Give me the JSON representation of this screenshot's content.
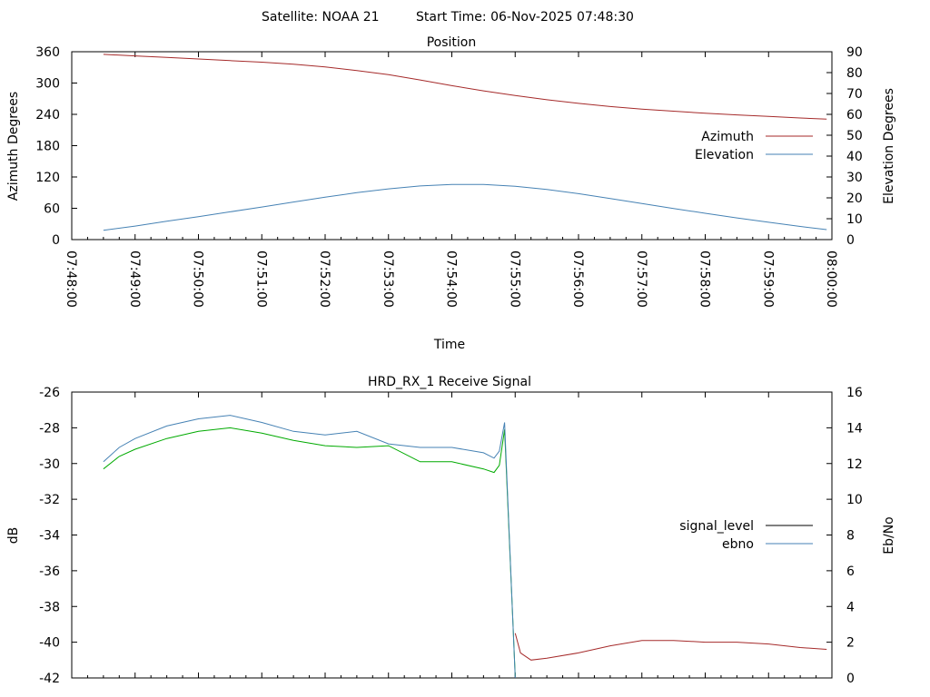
{
  "header": {
    "satellite_label": "Satellite: NOAA 21",
    "start_time_label": "Start Time: 06-Nov-2025 07:48:30"
  },
  "chart_data": [
    {
      "type": "line",
      "title": "Position",
      "xlabel": "Time",
      "ylabel_left": "Azimuth Degrees",
      "ylabel_right": "Elevation Degrees",
      "x_ticks": [
        "07:48:00",
        "07:49:00",
        "07:50:00",
        "07:51:00",
        "07:52:00",
        "07:53:00",
        "07:54:00",
        "07:55:00",
        "07:56:00",
        "07:57:00",
        "07:58:00",
        "07:59:00",
        "08:00:00"
      ],
      "ylim_left": [
        0,
        360
      ],
      "yticks_left": [
        "0",
        "60",
        "120",
        "180",
        "240",
        "300",
        "360"
      ],
      "ylim_right": [
        0,
        90
      ],
      "yticks_right": [
        "0",
        "10",
        "20",
        "30",
        "40",
        "50",
        "60",
        "70",
        "80",
        "90"
      ],
      "legend_position": "right",
      "grid": false,
      "series": [
        {
          "name": "Azimuth",
          "axis": "left",
          "color": "#a52a2a",
          "x": [
            "07:48:30",
            "07:49:00",
            "07:49:30",
            "07:50:00",
            "07:50:30",
            "07:51:00",
            "07:51:30",
            "07:52:00",
            "07:52:30",
            "07:53:00",
            "07:53:30",
            "07:54:00",
            "07:54:30",
            "07:55:00",
            "07:55:30",
            "07:56:00",
            "07:56:30",
            "07:57:00",
            "07:57:30",
            "07:58:00",
            "07:58:30",
            "07:59:00",
            "07:59:30",
            "07:59:55"
          ],
          "values": [
            355,
            352,
            349,
            346,
            343,
            340,
            336,
            331,
            324,
            316,
            306,
            295,
            285,
            276,
            268,
            261,
            255,
            250,
            246,
            242,
            239,
            236,
            233,
            231
          ]
        },
        {
          "name": "Elevation",
          "axis": "right",
          "color": "#4682b4",
          "x": [
            "07:48:30",
            "07:49:00",
            "07:49:30",
            "07:50:00",
            "07:50:30",
            "07:51:00",
            "07:51:30",
            "07:52:00",
            "07:52:30",
            "07:53:00",
            "07:53:30",
            "07:54:00",
            "07:54:30",
            "07:55:00",
            "07:55:30",
            "07:56:00",
            "07:56:30",
            "07:57:00",
            "07:57:30",
            "07:58:00",
            "07:58:30",
            "07:59:00",
            "07:59:30",
            "07:59:55"
          ],
          "values": [
            4.5,
            6.5,
            8.8,
            11,
            13.3,
            15.6,
            18,
            20.3,
            22.5,
            24.3,
            25.7,
            26.4,
            26.4,
            25.5,
            24,
            22,
            19.7,
            17.3,
            14.9,
            12.6,
            10.4,
            8.3,
            6.3,
            4.8
          ]
        }
      ]
    },
    {
      "type": "line",
      "title": "HRD_RX_1 Receive Signal",
      "ylabel_left": "dB",
      "ylabel_right": "Eb/No",
      "ylim_left": [
        -42,
        -26
      ],
      "yticks_left": [
        "-42",
        "-40",
        "-38",
        "-36",
        "-34",
        "-32",
        "-30",
        "-28",
        "-26"
      ],
      "ylim_right": [
        0,
        16
      ],
      "yticks_right": [
        "0",
        "2",
        "4",
        "6",
        "8",
        "10",
        "12",
        "14",
        "16"
      ],
      "legend_position": "right",
      "grid": false,
      "series": [
        {
          "name": "signal_level",
          "axis": "left",
          "color": "#000000",
          "segments": [
            {
              "color": "#00aa00",
              "x": [
                "07:48:30",
                "07:48:45",
                "07:49:00",
                "07:49:30",
                "07:50:00",
                "07:50:30",
                "07:51:00",
                "07:51:30",
                "07:52:00",
                "07:52:30",
                "07:53:00",
                "07:53:30",
                "07:54:00",
                "07:54:30",
                "07:54:40",
                "07:54:45",
                "07:54:50",
                "07:55:00"
              ],
              "values": [
                -30.3,
                -29.6,
                -29.2,
                -28.6,
                -28.2,
                -28.0,
                -28.3,
                -28.7,
                -29.0,
                -29.1,
                -29.0,
                -29.9,
                -29.9,
                -30.3,
                -30.5,
                -30.1,
                -28.1,
                -41.9
              ]
            },
            {
              "color": "#a52a2a",
              "x": [
                "07:55:00",
                "07:55:05",
                "07:55:15",
                "07:55:30",
                "07:56:00",
                "07:56:30",
                "07:57:00",
                "07:57:30",
                "07:58:00",
                "07:58:30",
                "07:59:00",
                "07:59:30",
                "07:59:55"
              ],
              "values": [
                -39.5,
                -40.6,
                -41.0,
                -40.9,
                -40.6,
                -40.2,
                -39.9,
                -39.9,
                -40.0,
                -40.0,
                -40.1,
                -40.3,
                -40.4
              ]
            }
          ]
        },
        {
          "name": "ebno",
          "axis": "right",
          "color": "#4682b4",
          "x": [
            "07:48:30",
            "07:48:45",
            "07:49:00",
            "07:49:30",
            "07:50:00",
            "07:50:30",
            "07:51:00",
            "07:51:30",
            "07:52:00",
            "07:52:30",
            "07:53:00",
            "07:53:30",
            "07:54:00",
            "07:54:30",
            "07:54:40",
            "07:54:45",
            "07:54:50",
            "07:55:00"
          ],
          "values": [
            12.1,
            12.9,
            13.4,
            14.1,
            14.5,
            14.7,
            14.3,
            13.8,
            13.6,
            13.8,
            13.1,
            12.9,
            12.9,
            12.6,
            12.3,
            12.7,
            14.3,
            0
          ]
        }
      ]
    }
  ]
}
